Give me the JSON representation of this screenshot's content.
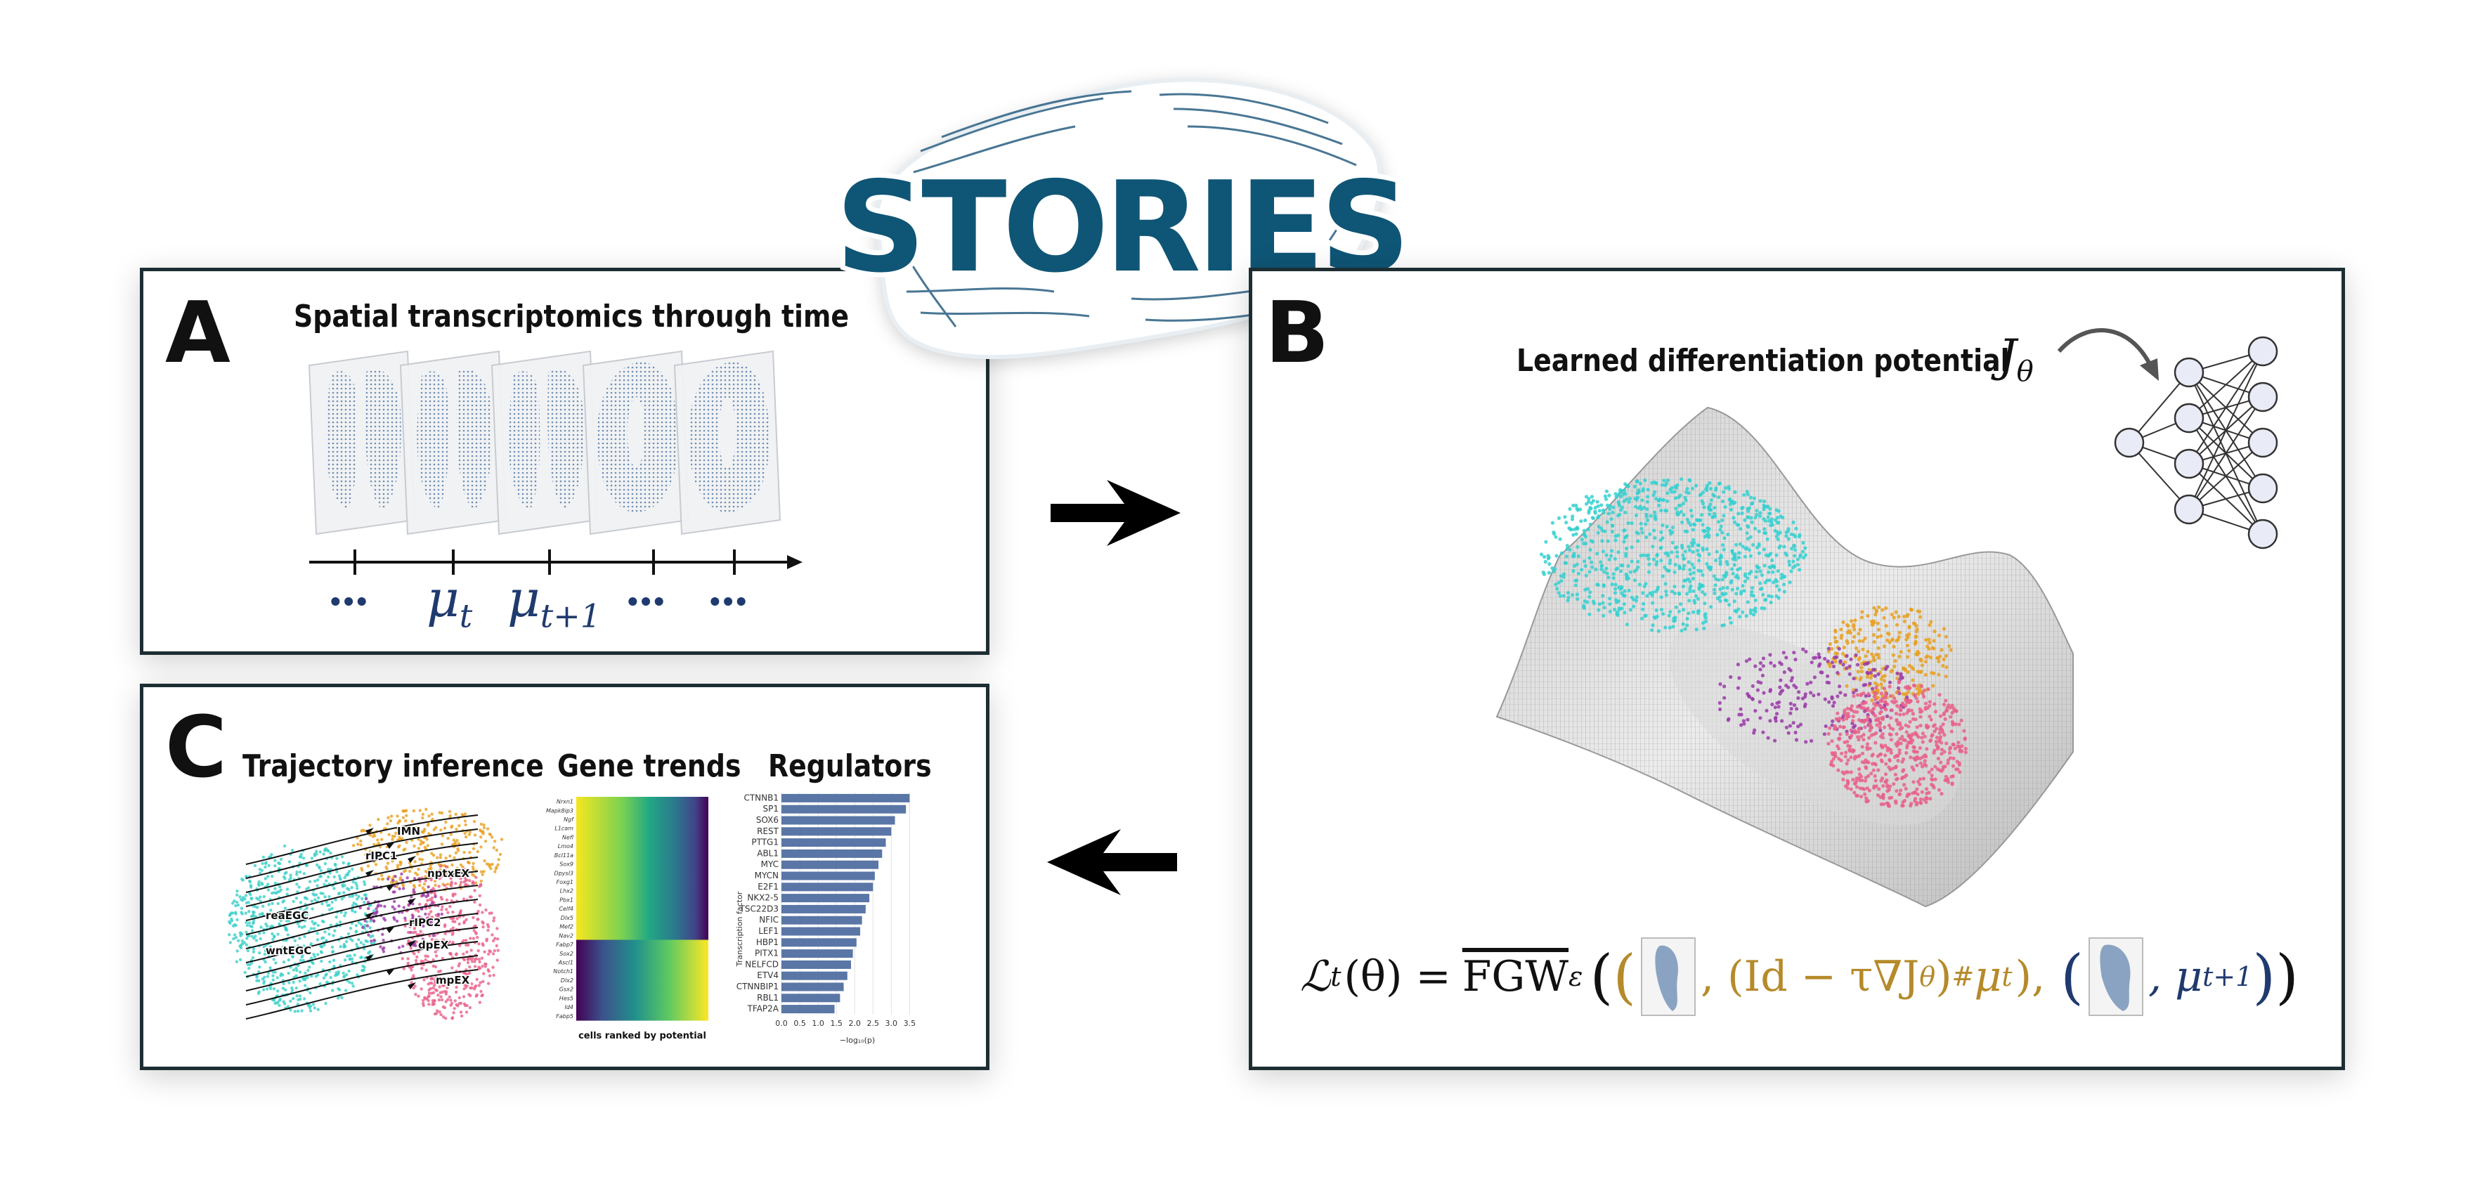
{
  "logo": {
    "text": "STORIES"
  },
  "panel_a": {
    "letter": "A",
    "title": "Spatial transcriptomics through time",
    "timeline_labels": [
      "•••",
      "μ",
      "μ",
      "•••",
      "•••"
    ],
    "mu_t_sub": "t",
    "mu_t1_sub": "t+1"
  },
  "panel_b": {
    "letter": "B",
    "title": "Learned differentiation potential",
    "potential_symbol": "J",
    "potential_sub": "θ",
    "loss": {
      "lhs": "ℒ",
      "lhs_sub": "t",
      "lhs_arg": "(θ) =",
      "fgw": "FGW",
      "fgw_sub": "ε",
      "term1": ", (Id − τ∇J",
      "term1_sub": "θ",
      "term1_tail": ")",
      "term1_push": "#",
      "term1_mu": "μ",
      "term1_mu_sub": "t",
      "sep": "),",
      "term2": ", μ",
      "term2_sub": "t+1",
      "close": ")"
    },
    "colors": {
      "cyan": "#35d0d0",
      "orange": "#e8a020",
      "pink": "#e8608a",
      "purple": "#9a3aa8",
      "formula_gold": "#b58a2a",
      "formula_navy": "#1f3a6e"
    }
  },
  "panel_c": {
    "letter": "C",
    "titles": {
      "trajectory": "Trajectory inference",
      "genes": "Gene trends",
      "regulators": "Regulators"
    },
    "trajectory_labels": [
      "IMN",
      "rIPC1",
      "nptxEX",
      "reaEGC",
      "rIPC2",
      "dpEX",
      "wntEGC",
      "mpEX"
    ],
    "gene_names": [
      "Nrxn1",
      "Mapk8ip3",
      "Ngf",
      "L1cam",
      "Nefl",
      "Lmo4",
      "Bcl11a",
      "Sox9",
      "Dpysl3",
      "Foxg1",
      "Lhx2",
      "Pbx1",
      "Celf4",
      "Dlx5",
      "Mef2",
      "Nav2",
      "Fabp7",
      "Sox2",
      "Ascl1",
      "Notch1",
      "Dlx2",
      "Gsx2",
      "Hes5",
      "Id4",
      "Fabp5"
    ],
    "heatmap_xlabel": "cells ranked by potential",
    "regulators": {
      "ylabel": "Transcription factor",
      "xlabel": "−log₁₀(p)",
      "xticks": [
        "0.0",
        "0.5",
        "1.0",
        "1.5",
        "2.0",
        "2.5",
        "3.0",
        "3.5"
      ],
      "xlim": [
        0,
        3.8
      ],
      "names": [
        "CTNNB1",
        "SP1",
        "SOX6",
        "REST",
        "PTTG1",
        "ABL1",
        "MYC",
        "MYCN",
        "E2F1",
        "NKX2-5",
        "TSC22D3",
        "NFIC",
        "LEF1",
        "HBP1",
        "PITX1",
        "NELFCD",
        "ETV4",
        "CTNNBIP1",
        "RBL1",
        "TFAP2A"
      ],
      "values": [
        3.5,
        3.4,
        3.1,
        3.0,
        2.85,
        2.75,
        2.65,
        2.55,
        2.5,
        2.4,
        2.3,
        2.2,
        2.15,
        2.05,
        1.95,
        1.9,
        1.8,
        1.7,
        1.6,
        1.45
      ],
      "bar_color": "#5a76a6"
    }
  }
}
